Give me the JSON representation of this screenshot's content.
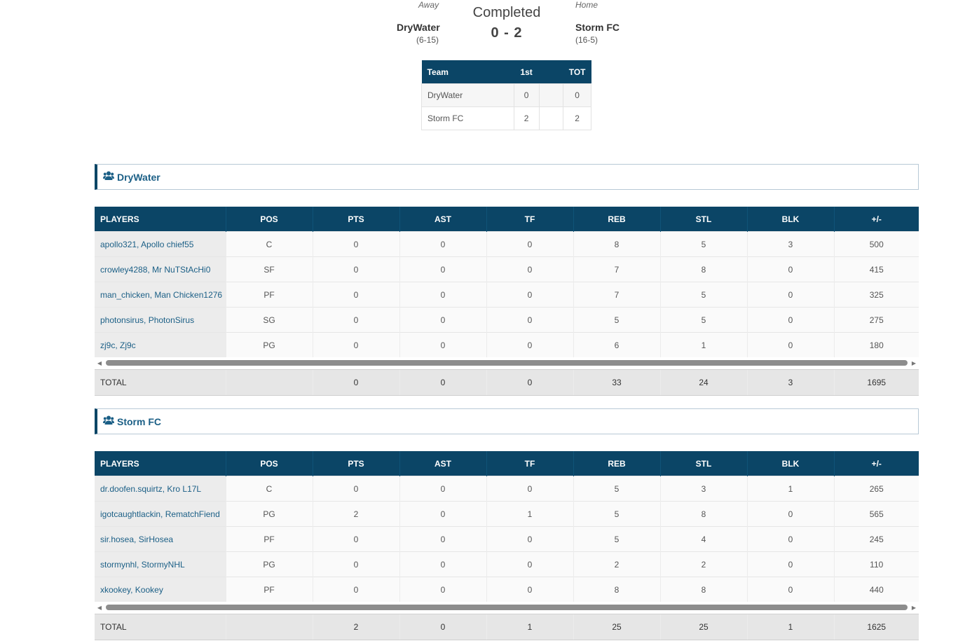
{
  "game": {
    "away_label": "Away",
    "home_label": "Home",
    "status": "Completed",
    "score": "0 - 2",
    "away": {
      "name": "DryWater",
      "record": "(6-15)"
    },
    "home": {
      "name": "Storm FC",
      "record": "(16-5)"
    }
  },
  "period_table": {
    "headers": [
      "Team",
      "1st",
      "",
      "TOT"
    ],
    "rows": [
      [
        "DryWater",
        "0",
        "",
        "0"
      ],
      [
        "Storm FC",
        "2",
        "",
        "2"
      ]
    ]
  },
  "columns": [
    "PLAYERS",
    "POS",
    "PTS",
    "AST",
    "TF",
    "REB",
    "STL",
    "BLK",
    "+/-"
  ],
  "teams": [
    {
      "name": "DryWater",
      "icon": "users-icon",
      "players": [
        [
          "apollo321, Apollo chief55",
          "C",
          "0",
          "0",
          "0",
          "8",
          "5",
          "3",
          "500"
        ],
        [
          "crowley4288, Mr NuTStAcHi0",
          "SF",
          "0",
          "0",
          "0",
          "7",
          "8",
          "0",
          "415"
        ],
        [
          "man_chicken, Man Chicken1276",
          "PF",
          "0",
          "0",
          "0",
          "7",
          "5",
          "0",
          "325"
        ],
        [
          "photonsirus, PhotonSirus",
          "SG",
          "0",
          "0",
          "0",
          "5",
          "5",
          "0",
          "275"
        ],
        [
          "zj9c, Zj9c",
          "PG",
          "0",
          "0",
          "0",
          "6",
          "1",
          "0",
          "180"
        ]
      ],
      "total": [
        "TOTAL",
        "",
        "0",
        "0",
        "0",
        "33",
        "24",
        "3",
        "1695"
      ]
    },
    {
      "name": "Storm FC",
      "icon": "users-icon",
      "players": [
        [
          "dr.doofen.squirtz, Kro L17L",
          "C",
          "0",
          "0",
          "0",
          "5",
          "3",
          "1",
          "265"
        ],
        [
          "igotcaughtlackin, RematchFiend",
          "PG",
          "2",
          "0",
          "1",
          "5",
          "8",
          "0",
          "565"
        ],
        [
          "sir.hosea, SirHosea",
          "PF",
          "0",
          "0",
          "0",
          "5",
          "4",
          "0",
          "245"
        ],
        [
          "stormynhl, StormyNHL",
          "PG",
          "0",
          "0",
          "0",
          "2",
          "2",
          "0",
          "110"
        ],
        [
          "xkookey, Kookey",
          "PF",
          "0",
          "0",
          "0",
          "8",
          "8",
          "0",
          "440"
        ]
      ],
      "total": [
        "TOTAL",
        "",
        "2",
        "0",
        "1",
        "25",
        "25",
        "1",
        "1625"
      ]
    }
  ],
  "colors": {
    "header_bg": "#0b4566",
    "link": "#1b5f86"
  }
}
